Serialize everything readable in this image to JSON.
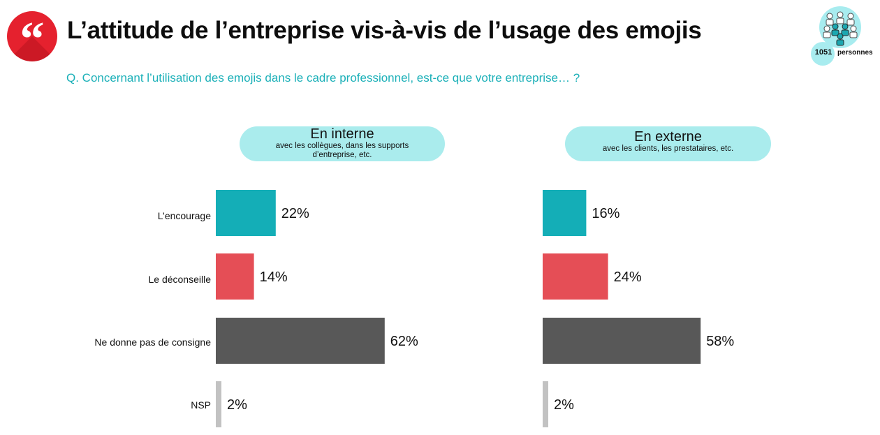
{
  "header": {
    "quote_glyph": "“",
    "title": "L’attitude de l’entreprise vis-à-vis de l’usage des emojis",
    "question": "Q. Concernant l’utilisation des emojis dans le cadre professionnel, est-ce que votre entreprise… ?",
    "sample_count": "1051",
    "sample_label": "personnes"
  },
  "colors": {
    "accent": "#1bb0b8",
    "encourage": "#14aeb7",
    "deconseille": "#e54e56",
    "no_guidance": "#585858",
    "nsp": "#c2c2c2",
    "pill": "#aaeced"
  },
  "chart_data": [
    {
      "type": "bar",
      "orientation": "horizontal",
      "title": "En interne",
      "subtitle": "avec les collègues, dans les supports d’entreprise, etc.",
      "categories": [
        "L’encourage",
        "Le déconseille",
        "Ne donne pas de consigne",
        "NSP"
      ],
      "values": [
        22,
        14,
        62,
        2
      ],
      "labels": [
        "22%",
        "14%",
        "62%",
        "2%"
      ],
      "unit": "%"
    },
    {
      "type": "bar",
      "orientation": "horizontal",
      "title": "En externe",
      "subtitle": "avec les clients, les prestataires, etc.",
      "categories": [
        "L’encourage",
        "Le déconseille",
        "Ne donne pas de consigne",
        "NSP"
      ],
      "values": [
        16,
        24,
        58,
        2
      ],
      "labels": [
        "16%",
        "24%",
        "58%",
        "2%"
      ],
      "unit": "%"
    }
  ]
}
